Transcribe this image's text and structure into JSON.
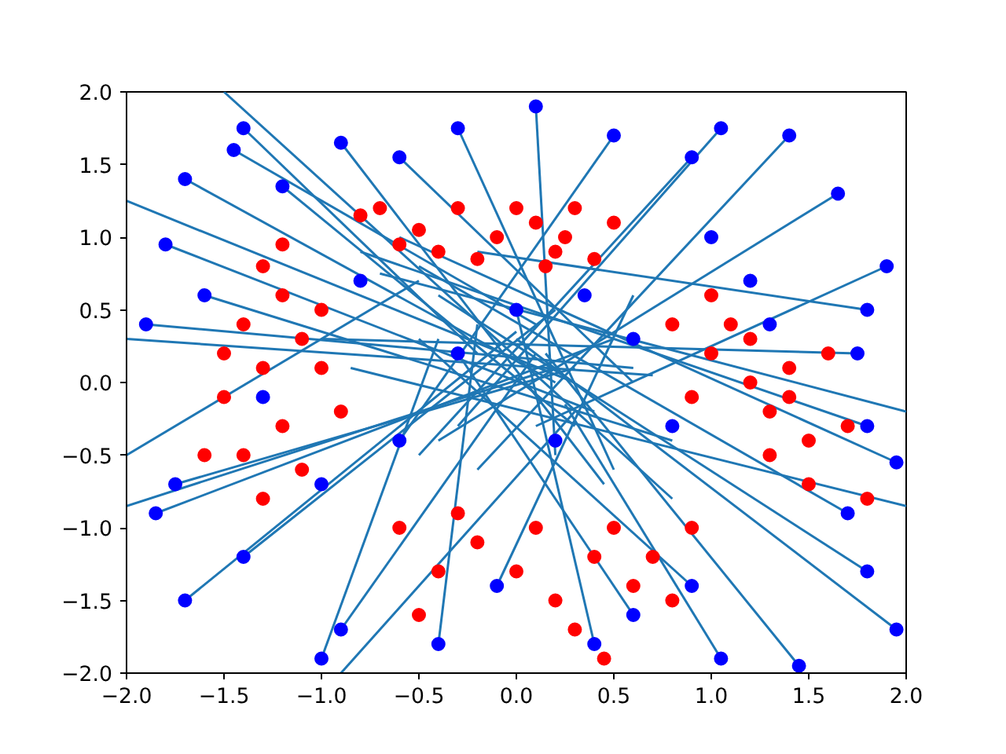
{
  "chart_data": {
    "type": "scatter",
    "marker": "circle",
    "grid": false,
    "xlim": [
      -2,
      2
    ],
    "ylim": [
      -2,
      2
    ],
    "xticks": [
      {
        "value": -2,
        "label": "−2.0"
      },
      {
        "value": -1.5,
        "label": "−1.5"
      },
      {
        "value": -1,
        "label": "−1.0"
      },
      {
        "value": -0.5,
        "label": "−0.5"
      },
      {
        "value": 0,
        "label": "0.0"
      },
      {
        "value": 0.5,
        "label": "0.5"
      },
      {
        "value": 1,
        "label": "1.0"
      },
      {
        "value": 1.5,
        "label": "1.5"
      },
      {
        "value": 2,
        "label": "2.0"
      }
    ],
    "yticks": [
      {
        "value": -2,
        "label": "−2.0"
      },
      {
        "value": -1.5,
        "label": "−1.5"
      },
      {
        "value": -1,
        "label": "−1.0"
      },
      {
        "value": -0.5,
        "label": "−0.5"
      },
      {
        "value": 0,
        "label": "0.0"
      },
      {
        "value": 0.5,
        "label": "0.5"
      },
      {
        "value": 1,
        "label": "1.0"
      },
      {
        "value": 1.5,
        "label": "1.5"
      },
      {
        "value": 2,
        "label": "2.0"
      }
    ],
    "series": [
      {
        "type": "line",
        "marker": "none",
        "color": "#1f77b4",
        "x": [
          -1.4,
          -0.2
        ],
        "values": [
          1.75,
          0.2
        ]
      },
      {
        "type": "line",
        "marker": "none",
        "color": "#1f77b4",
        "x": [
          -1.45,
          0.1
        ],
        "values": [
          1.6,
          0.4
        ]
      },
      {
        "type": "line",
        "marker": "none",
        "color": "#1f77b4",
        "x": [
          -1.7,
          0.2
        ],
        "values": [
          1.4,
          0.0
        ]
      },
      {
        "type": "line",
        "marker": "none",
        "color": "#1f77b4",
        "x": [
          -1.2,
          0.3
        ],
        "values": [
          1.35,
          -0.3
        ]
      },
      {
        "type": "line",
        "marker": "none",
        "color": "#1f77b4",
        "x": [
          -1.8,
          0.4
        ],
        "values": [
          0.95,
          -0.2
        ]
      },
      {
        "type": "line",
        "marker": "none",
        "color": "#1f77b4",
        "x": [
          -1.9,
          0.6
        ],
        "values": [
          0.4,
          0.1
        ]
      },
      {
        "type": "line",
        "marker": "none",
        "color": "#1f77b4",
        "x": [
          -1.6,
          0.8
        ],
        "values": [
          0.6,
          -0.4
        ]
      },
      {
        "type": "line",
        "marker": "none",
        "color": "#1f77b4",
        "x": [
          -1.75,
          0.3
        ],
        "values": [
          -0.7,
          0.1
        ]
      },
      {
        "type": "line",
        "marker": "none",
        "color": "#1f77b4",
        "x": [
          -1.85,
          0.5
        ],
        "values": [
          -0.9,
          0.3
        ]
      },
      {
        "type": "line",
        "marker": "none",
        "color": "#1f77b4",
        "x": [
          -1.7,
          0.0
        ],
        "values": [
          -1.5,
          0.35
        ]
      },
      {
        "type": "line",
        "marker": "none",
        "color": "#1f77b4",
        "x": [
          -1.4,
          0.2
        ],
        "values": [
          -1.2,
          0.5
        ]
      },
      {
        "type": "line",
        "marker": "none",
        "color": "#1f77b4",
        "x": [
          -1.0,
          -0.4
        ],
        "values": [
          -1.9,
          0.3
        ]
      },
      {
        "type": "line",
        "marker": "none",
        "color": "#1f77b4",
        "x": [
          -0.9,
          0.1
        ],
        "values": [
          -1.7,
          0.2
        ]
      },
      {
        "type": "line",
        "marker": "none",
        "color": "#1f77b4",
        "x": [
          -0.4,
          -0.2
        ],
        "values": [
          -1.8,
          0.4
        ]
      },
      {
        "type": "line",
        "marker": "none",
        "color": "#1f77b4",
        "x": [
          -0.1,
          0.6
        ],
        "values": [
          -1.4,
          0.6
        ]
      },
      {
        "type": "line",
        "marker": "none",
        "color": "#1f77b4",
        "x": [
          0.4,
          0.0
        ],
        "values": [
          -1.8,
          0.5
        ]
      },
      {
        "type": "line",
        "marker": "none",
        "color": "#1f77b4",
        "x": [
          0.6,
          -0.3
        ],
        "values": [
          -1.6,
          0.2
        ]
      },
      {
        "type": "line",
        "marker": "none",
        "color": "#1f77b4",
        "x": [
          0.9,
          -0.5
        ],
        "values": [
          -1.4,
          0.3
        ]
      },
      {
        "type": "line",
        "marker": "none",
        "color": "#1f77b4",
        "x": [
          1.05,
          0.25
        ],
        "values": [
          -1.9,
          -0.15
        ]
      },
      {
        "type": "line",
        "marker": "none",
        "color": "#1f77b4",
        "x": [
          1.45,
          0.15
        ],
        "values": [
          -1.95,
          0.2
        ]
      },
      {
        "type": "line",
        "marker": "none",
        "color": "#1f77b4",
        "x": [
          1.8,
          -0.4
        ],
        "values": [
          -1.3,
          0.6
        ]
      },
      {
        "type": "line",
        "marker": "none",
        "color": "#1f77b4",
        "x": [
          1.95,
          0.0
        ],
        "values": [
          -1.7,
          0.3
        ]
      },
      {
        "type": "line",
        "marker": "none",
        "color": "#1f77b4",
        "x": [
          1.7,
          -0.5
        ],
        "values": [
          -0.9,
          0.8
        ]
      },
      {
        "type": "line",
        "marker": "none",
        "color": "#1f77b4",
        "x": [
          1.95,
          -0.6
        ],
        "values": [
          -0.55,
          1.0
        ]
      },
      {
        "type": "line",
        "marker": "none",
        "color": "#1f77b4",
        "x": [
          1.8,
          -0.8
        ],
        "values": [
          -0.3,
          0.9
        ]
      },
      {
        "type": "line",
        "marker": "none",
        "color": "#1f77b4",
        "x": [
          1.75,
          -1.0
        ],
        "values": [
          0.2,
          0.3
        ]
      },
      {
        "type": "line",
        "marker": "none",
        "color": "#1f77b4",
        "x": [
          1.8,
          -0.2
        ],
        "values": [
          0.5,
          0.9
        ]
      },
      {
        "type": "line",
        "marker": "none",
        "color": "#1f77b4",
        "x": [
          1.9,
          0.1
        ],
        "values": [
          0.8,
          -0.3
        ]
      },
      {
        "type": "line",
        "marker": "none",
        "color": "#1f77b4",
        "x": [
          1.65,
          -0.4
        ],
        "values": [
          1.3,
          -0.4
        ]
      },
      {
        "type": "line",
        "marker": "none",
        "color": "#1f77b4",
        "x": [
          1.4,
          -0.2
        ],
        "values": [
          1.7,
          -0.6
        ]
      },
      {
        "type": "line",
        "marker": "none",
        "color": "#1f77b4",
        "x": [
          1.05,
          -0.3
        ],
        "values": [
          1.75,
          -0.3
        ]
      },
      {
        "type": "line",
        "marker": "none",
        "color": "#1f77b4",
        "x": [
          0.9,
          -0.5
        ],
        "values": [
          1.55,
          -0.5
        ]
      },
      {
        "type": "line",
        "marker": "none",
        "color": "#1f77b4",
        "x": [
          0.5,
          -0.6
        ],
        "values": [
          1.7,
          -0.4
        ]
      },
      {
        "type": "line",
        "marker": "none",
        "color": "#1f77b4",
        "x": [
          0.1,
          0.2
        ],
        "values": [
          1.9,
          -0.5
        ]
      },
      {
        "type": "line",
        "marker": "none",
        "color": "#1f77b4",
        "x": [
          -0.3,
          0.5
        ],
        "values": [
          1.75,
          -0.6
        ]
      },
      {
        "type": "line",
        "marker": "none",
        "color": "#1f77b4",
        "x": [
          -0.6,
          0.6
        ],
        "values": [
          1.55,
          0.0
        ]
      },
      {
        "type": "line",
        "marker": "none",
        "color": "#1f77b4",
        "x": [
          -0.9,
          0.45
        ],
        "values": [
          1.65,
          -0.7
        ]
      },
      {
        "type": "line",
        "marker": "none",
        "color": "#1f77b4",
        "x": [
          -2.0,
          0.3
        ],
        "values": [
          1.25,
          0.0
        ]
      },
      {
        "type": "line",
        "marker": "none",
        "color": "#1f77b4",
        "x": [
          -2.0,
          0.7
        ],
        "values": [
          0.3,
          0.05
        ]
      },
      {
        "type": "line",
        "marker": "none",
        "color": "#1f77b4",
        "x": [
          -2.0,
          -0.5
        ],
        "values": [
          -0.5,
          0.7
        ]
      },
      {
        "type": "line",
        "marker": "none",
        "color": "#1f77b4",
        "x": [
          -2.0,
          0.2
        ],
        "values": [
          -0.85,
          0.1
        ]
      },
      {
        "type": "line",
        "marker": "none",
        "color": "#1f77b4",
        "x": [
          -1.5,
          0.8
        ],
        "values": [
          2.0,
          -0.8
        ]
      },
      {
        "type": "line",
        "marker": "none",
        "color": "#1f77b4",
        "x": [
          -0.9,
          0.3
        ],
        "values": [
          -2.0,
          -0.2
        ]
      },
      {
        "type": "line",
        "marker": "none",
        "color": "#1f77b4",
        "x": [
          2.0,
          -0.85
        ],
        "values": [
          -0.85,
          0.1
        ]
      },
      {
        "type": "line",
        "marker": "none",
        "color": "#1f77b4",
        "x": [
          2.0,
          -0.7
        ],
        "values": [
          -0.2,
          0.75
        ]
      },
      {
        "color": "#ff0000",
        "x": [
          -0.3,
          -0.1,
          0.1,
          0.2,
          0.3,
          -0.5,
          0.4,
          -0.2,
          0.0,
          0.15,
          -0.4,
          0.25,
          -0.7,
          -0.6,
          0.5,
          -0.8,
          -1.3,
          -1.2,
          -1.4,
          -1.1,
          -1.3,
          -1.0,
          -1.5,
          -1.2,
          -1.4,
          -1.1,
          -1.6,
          -1.3,
          -0.9,
          -1.0,
          -1.5,
          -1.2,
          1.0,
          1.2,
          1.3,
          1.1,
          1.4,
          1.5,
          0.9,
          1.6,
          1.3,
          1.7,
          1.2,
          0.8,
          1.5,
          1.8,
          1.0,
          1.4,
          0.2,
          0.4,
          0.0,
          -0.2,
          0.6,
          0.3,
          -0.4,
          0.5,
          0.7,
          0.1,
          -0.6,
          -0.5,
          0.8,
          0.45,
          -0.3,
          0.9
        ],
        "values": [
          1.2,
          1.0,
          1.1,
          0.9,
          1.2,
          1.05,
          0.85,
          0.85,
          1.2,
          0.8,
          0.9,
          1.0,
          1.2,
          0.95,
          1.1,
          1.15,
          0.8,
          0.6,
          0.4,
          0.3,
          0.1,
          0.5,
          -0.1,
          -0.3,
          -0.5,
          -0.6,
          -0.5,
          -0.8,
          -0.2,
          0.1,
          0.2,
          0.95,
          0.2,
          0.0,
          -0.2,
          0.4,
          0.1,
          -0.4,
          -0.1,
          0.2,
          -0.5,
          -0.3,
          0.3,
          0.4,
          -0.7,
          -0.8,
          0.6,
          -0.1,
          -1.5,
          -1.2,
          -1.3,
          -1.1,
          -1.4,
          -1.7,
          -1.3,
          -1.0,
          -1.2,
          -1.0,
          -1.0,
          -1.6,
          -1.5,
          -1.9,
          -0.9,
          -1.0
        ]
      },
      {
        "color": "#0000ff",
        "x": [
          -1.4,
          -1.45,
          -1.7,
          -1.2,
          -1.8,
          -1.9,
          -1.6,
          -1.75,
          -1.85,
          -1.7,
          -1.4,
          -1.0,
          -0.9,
          -0.4,
          -0.1,
          0.4,
          0.6,
          0.9,
          1.05,
          1.45,
          1.8,
          1.95,
          1.7,
          1.95,
          1.8,
          1.75,
          1.8,
          1.9,
          1.65,
          1.4,
          1.05,
          0.9,
          0.5,
          0.1,
          -0.3,
          -0.6,
          -0.9,
          1.0,
          1.2,
          -1.3,
          -1.0,
          0.6,
          -0.3,
          0.2,
          0.8,
          -0.6,
          0.0,
          -0.8,
          0.35,
          1.3
        ],
        "values": [
          1.75,
          1.6,
          1.4,
          1.35,
          0.95,
          0.4,
          0.6,
          -0.7,
          -0.9,
          -1.5,
          -1.2,
          -1.9,
          -1.7,
          -1.8,
          -1.4,
          -1.8,
          -1.6,
          -1.4,
          -1.9,
          -1.95,
          -1.3,
          -1.7,
          -0.9,
          -0.55,
          -0.3,
          0.2,
          0.5,
          0.8,
          1.3,
          1.7,
          1.75,
          1.55,
          1.7,
          1.9,
          1.75,
          1.55,
          1.65,
          1.0,
          0.7,
          -0.1,
          -0.7,
          0.3,
          0.2,
          -0.4,
          -0.3,
          -0.4,
          0.5,
          0.7,
          0.6,
          0.4
        ]
      }
    ]
  }
}
